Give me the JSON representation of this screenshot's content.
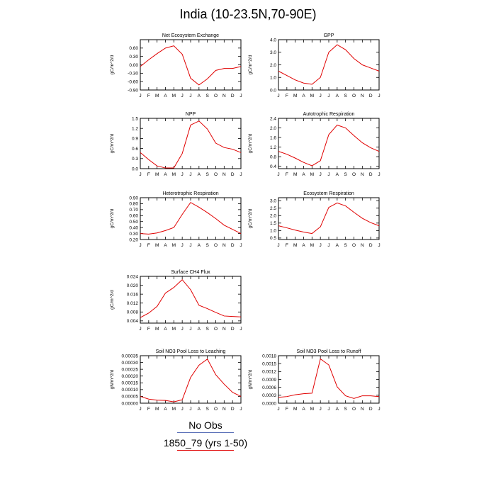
{
  "figure": {
    "title": "India (10-23.5N,70-90E)"
  },
  "colors": {
    "obs": "#5a6fb8",
    "model": "#e00000",
    "axis": "#000000"
  },
  "legend": {
    "items": [
      {
        "label": "No Obs",
        "color": "#5a6fb8"
      },
      {
        "label": "1850_79 (yrs 1-50)",
        "color": "#e00000"
      }
    ]
  },
  "chart_data": [
    {
      "type": "line",
      "title": "Net Ecosystem Exchange",
      "ylabel": "gC/m^2/d",
      "x": [
        "J",
        "F",
        "M",
        "A",
        "M",
        "J",
        "J",
        "A",
        "S",
        "O",
        "N",
        "D",
        "J"
      ],
      "ylim": [
        -0.9,
        0.9
      ],
      "yticks": [
        -0.9,
        -0.6,
        -0.3,
        0.0,
        0.3,
        0.6
      ],
      "ytick_labels": [
        "-0.90",
        "-0.60",
        "-0.30",
        "0.00",
        "0.30",
        "0.60"
      ],
      "series": [
        {
          "name": "1850_79 (yrs 1-50)",
          "values": [
            -0.06,
            0.18,
            0.4,
            0.6,
            0.68,
            0.38,
            -0.48,
            -0.72,
            -0.5,
            -0.2,
            -0.13,
            -0.13,
            -0.06
          ]
        }
      ]
    },
    {
      "type": "line",
      "title": "GPP",
      "ylabel": "gC/m^2/d",
      "x": [
        "J",
        "F",
        "M",
        "A",
        "M",
        "J",
        "J",
        "A",
        "S",
        "O",
        "N",
        "D",
        "J"
      ],
      "ylim": [
        0.0,
        4.0
      ],
      "yticks": [
        0.0,
        1.0,
        2.0,
        3.0,
        4.0
      ],
      "ytick_labels": [
        "0.0",
        "1.0",
        "2.0",
        "3.0",
        "4.0"
      ],
      "series": [
        {
          "name": "1850_79 (yrs 1-50)",
          "values": [
            1.5,
            1.15,
            0.8,
            0.55,
            0.45,
            1.0,
            3.0,
            3.6,
            3.2,
            2.5,
            2.0,
            1.75,
            1.5
          ]
        }
      ]
    },
    {
      "type": "line",
      "title": "NPP",
      "ylabel": "gC/m^2/d",
      "x": [
        "J",
        "F",
        "M",
        "A",
        "M",
        "J",
        "J",
        "A",
        "S",
        "O",
        "N",
        "D",
        "J"
      ],
      "ylim": [
        0.0,
        1.5
      ],
      "yticks": [
        0.0,
        0.3,
        0.6,
        0.9,
        1.2,
        1.5
      ],
      "ytick_labels": [
        "0.0",
        "0.3",
        "0.6",
        "0.9",
        "1.2",
        "1.5"
      ],
      "series": [
        {
          "name": "1850_79 (yrs 1-50)",
          "values": [
            0.48,
            0.27,
            0.08,
            0.02,
            0.02,
            0.45,
            1.3,
            1.42,
            1.18,
            0.76,
            0.63,
            0.58,
            0.48
          ]
        }
      ]
    },
    {
      "type": "line",
      "title": "Autotrophic Respiration",
      "ylabel": "gC/m^2/d",
      "x": [
        "J",
        "F",
        "M",
        "A",
        "M",
        "J",
        "J",
        "A",
        "S",
        "O",
        "N",
        "D",
        "J"
      ],
      "ylim": [
        0.3,
        2.4
      ],
      "yticks": [
        0.4,
        0.8,
        1.2,
        1.6,
        2.0,
        2.4
      ],
      "ytick_labels": [
        "0.4",
        "0.8",
        "1.2",
        "1.6",
        "2.0",
        "2.4"
      ],
      "series": [
        {
          "name": "1850_79 (yrs 1-50)",
          "values": [
            1.02,
            0.9,
            0.74,
            0.56,
            0.42,
            0.63,
            1.72,
            2.12,
            2.0,
            1.68,
            1.38,
            1.17,
            1.02
          ]
        }
      ]
    },
    {
      "type": "line",
      "title": "Heterotrophic Respiration",
      "ylabel": "gC/m^2/d",
      "x": [
        "J",
        "F",
        "M",
        "A",
        "M",
        "J",
        "J",
        "A",
        "S",
        "O",
        "N",
        "D",
        "J"
      ],
      "ylim": [
        0.2,
        0.9
      ],
      "yticks": [
        0.2,
        0.3,
        0.4,
        0.5,
        0.6,
        0.7,
        0.8,
        0.9
      ],
      "ytick_labels": [
        "0.20",
        "0.30",
        "0.40",
        "0.50",
        "0.60",
        "0.70",
        "0.80",
        "0.90"
      ],
      "series": [
        {
          "name": "1850_79 (yrs 1-50)",
          "values": [
            0.3,
            0.29,
            0.31,
            0.35,
            0.4,
            0.62,
            0.82,
            0.74,
            0.65,
            0.55,
            0.44,
            0.37,
            0.3
          ]
        }
      ]
    },
    {
      "type": "line",
      "title": "Ecosystem Respiration",
      "ylabel": "gC/m^2/d",
      "x": [
        "J",
        "F",
        "M",
        "A",
        "M",
        "J",
        "J",
        "A",
        "S",
        "O",
        "N",
        "D",
        "J"
      ],
      "ylim": [
        0.4,
        3.2
      ],
      "yticks": [
        0.5,
        1.0,
        1.5,
        2.0,
        2.5,
        3.0
      ],
      "ytick_labels": [
        "0.5",
        "1.0",
        "1.5",
        "2.0",
        "2.5",
        "3.0"
      ],
      "series": [
        {
          "name": "1850_79 (yrs 1-50)",
          "values": [
            1.32,
            1.18,
            1.03,
            0.9,
            0.8,
            1.25,
            2.55,
            2.85,
            2.65,
            2.22,
            1.82,
            1.53,
            1.32
          ]
        }
      ]
    },
    {
      "type": "line",
      "title": "Surface CH4 Flux",
      "ylabel": "gC/m^2/d",
      "x": [
        "J",
        "F",
        "M",
        "A",
        "M",
        "J",
        "J",
        "A",
        "S",
        "O",
        "N",
        "D",
        "J"
      ],
      "ylim": [
        0.003,
        0.024
      ],
      "yticks": [
        0.004,
        0.008,
        0.012,
        0.016,
        0.02,
        0.024
      ],
      "ytick_labels": [
        "0.004",
        "0.008",
        "0.012",
        "0.016",
        "0.020",
        "0.024"
      ],
      "series": [
        {
          "name": "1850_79 (yrs 1-50)",
          "values": [
            0.0055,
            0.0075,
            0.0105,
            0.0165,
            0.019,
            0.0225,
            0.018,
            0.011,
            0.0095,
            0.0078,
            0.0062,
            0.006,
            0.0058
          ]
        }
      ]
    },
    {
      "type": "line",
      "title": "Soil NO3 Pool Loss to Leaching",
      "ylabel": "gN/m^2/d",
      "x": [
        "J",
        "F",
        "M",
        "A",
        "M",
        "J",
        "J",
        "A",
        "S",
        "O",
        "N",
        "D",
        "J"
      ],
      "ylim": [
        0.0,
        0.00035
      ],
      "yticks": [
        0.0,
        5e-05,
        0.0001,
        0.00015,
        0.0002,
        0.00025,
        0.0003,
        0.00035
      ],
      "ytick_labels": [
        "0.00000",
        "0.00005",
        "0.00010",
        "0.00015",
        "0.00020",
        "0.00025",
        "0.00030",
        "0.00035"
      ],
      "series": [
        {
          "name": "1850_79 (yrs 1-50)",
          "values": [
            5e-05,
            3e-05,
            2.2e-05,
            2e-05,
            1e-05,
            2.5e-05,
            0.00019,
            0.00028,
            0.000325,
            0.00021,
            0.00014,
            8e-05,
            5e-05
          ]
        }
      ]
    },
    {
      "type": "line",
      "title": "Soil NO3 Pool Loss to Runoff",
      "ylabel": "gN/m^2/d",
      "x": [
        "J",
        "F",
        "M",
        "A",
        "M",
        "J",
        "J",
        "A",
        "S",
        "O",
        "N",
        "D",
        "J"
      ],
      "ylim": [
        0.0,
        0.0018
      ],
      "yticks": [
        0.0,
        0.0003,
        0.0006,
        0.0009,
        0.0012,
        0.0015,
        0.0018
      ],
      "ytick_labels": [
        "0.0000",
        "0.0003",
        "0.0006",
        "0.0009",
        "0.0012",
        "0.0015",
        "0.0018"
      ],
      "series": [
        {
          "name": "1850_79 (yrs 1-50)",
          "values": [
            0.00022,
            0.00025,
            0.00032,
            0.00036,
            0.00038,
            0.00168,
            0.00145,
            0.00062,
            0.00028,
            0.00018,
            0.00028,
            0.00028,
            0.00025
          ]
        }
      ]
    }
  ]
}
